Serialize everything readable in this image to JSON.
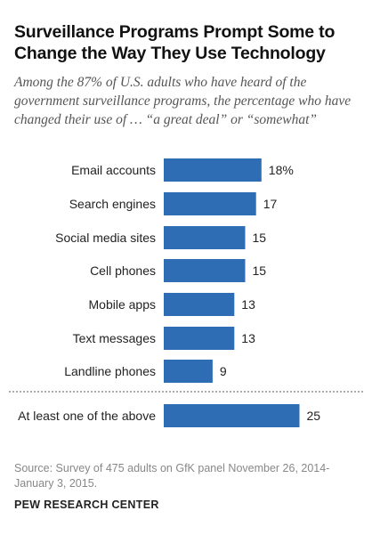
{
  "header": {
    "title": "Surveillance Programs Prompt Some to Change the Way They Use Technology",
    "subtitle": "Among the 87% of U.S. adults who have heard of the government surveillance programs, the percentage who have changed their use of … “a great deal” or “somewhat”"
  },
  "chart_data": {
    "type": "bar",
    "orientation": "horizontal",
    "categories": [
      "Email accounts",
      "Search engines",
      "Social media sites",
      "Cell phones",
      "Mobile apps",
      "Text messages",
      "Landline phones",
      "At least one of the above"
    ],
    "values": [
      18,
      17,
      15,
      15,
      13,
      13,
      9,
      25
    ],
    "value_labels": [
      "18%",
      "17",
      "15",
      "15",
      "13",
      "13",
      "9",
      "25"
    ],
    "bar_color": "#2e6db4",
    "separator_before_index": 7,
    "grid": false
  },
  "footer": {
    "source": "Source: Survey of 475 adults on GfK panel November 26, 2014-January 3, 2015.",
    "credit": "PEW RESEARCH CENTER"
  }
}
